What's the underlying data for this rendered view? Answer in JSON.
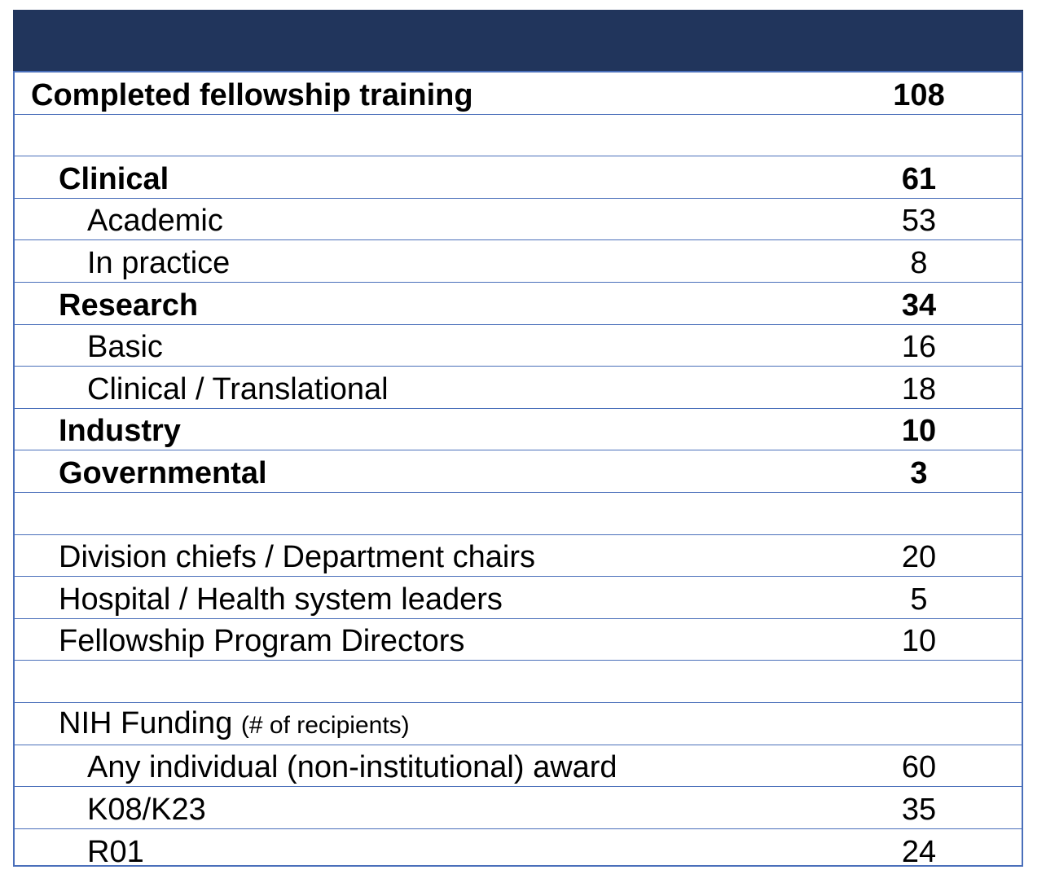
{
  "header": {
    "color": "#21355c"
  },
  "rows": [
    {
      "label": "Completed fellowship training",
      "value": "108",
      "level": 0,
      "bold": true
    },
    {
      "label": "",
      "value": "",
      "level": 0,
      "bold": false
    },
    {
      "label": "Clinical",
      "value": "61",
      "level": 1,
      "bold": true
    },
    {
      "label": "Academic",
      "value": "53",
      "level": 2,
      "bold": false
    },
    {
      "label": "In practice",
      "value": "8",
      "level": 2,
      "bold": false
    },
    {
      "label": "Research",
      "value": "34",
      "level": 1,
      "bold": true
    },
    {
      "label": "Basic",
      "value": "16",
      "level": 2,
      "bold": false
    },
    {
      "label": "Clinical / Translational",
      "value": "18",
      "level": 2,
      "bold": false
    },
    {
      "label": "Industry",
      "value": "10",
      "level": 1,
      "bold": true
    },
    {
      "label": "Governmental",
      "value": "3",
      "level": 1,
      "bold": true
    },
    {
      "label": "",
      "value": "",
      "level": 0,
      "bold": false
    },
    {
      "label": "Division chiefs / Department chairs",
      "value": "20",
      "level": 1,
      "bold": false
    },
    {
      "label": "Hospital / Health system leaders",
      "value": "5",
      "level": 1,
      "bold": false
    },
    {
      "label": "Fellowship Program Directors",
      "value": "10",
      "level": 1,
      "bold": false
    },
    {
      "label": "",
      "value": "",
      "level": 0,
      "bold": false
    },
    {
      "label": "NIH Funding",
      "note": "(# of recipients)",
      "value": "",
      "level": 1,
      "bold": false
    },
    {
      "label": "Any individual (non-institutional) award",
      "value": "60",
      "level": 2,
      "bold": false
    },
    {
      "label": "K08/K23",
      "value": "35",
      "level": 2,
      "bold": false
    },
    {
      "label": "R01",
      "value": "24",
      "level": 2,
      "bold": false
    }
  ]
}
